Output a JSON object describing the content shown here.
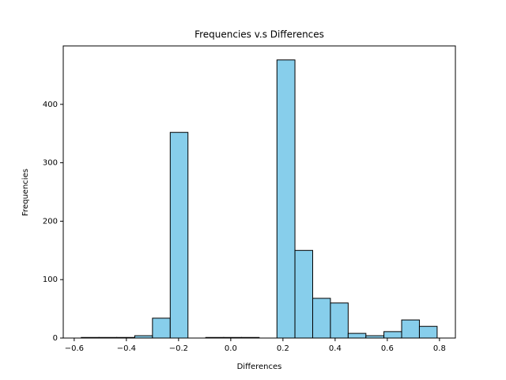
{
  "chart_data": {
    "type": "histogram",
    "title": "Frequencies v.s Differences",
    "x_label": "Differences",
    "y_label": "Frequencies",
    "bins": [
      -0.573,
      -0.505,
      -0.437,
      -0.368,
      -0.3,
      -0.232,
      -0.164,
      -0.096,
      -0.027,
      0.041,
      0.109,
      0.177,
      0.246,
      0.314,
      0.382,
      0.45,
      0.518,
      0.587,
      0.655,
      0.723,
      0.791
    ],
    "counts": [
      1,
      1,
      1,
      4,
      34,
      352,
      0,
      1,
      1,
      1,
      0,
      476,
      150,
      68,
      60,
      8,
      4,
      11,
      31,
      20
    ],
    "color": "#87ceeb",
    "edgecolor": "#000000",
    "xlim": [
      -0.642,
      0.861
    ],
    "ylim": [
      0,
      500
    ],
    "xticks": [
      {
        "value": -0.6,
        "label": "−0.6"
      },
      {
        "value": -0.4,
        "label": "−0.4"
      },
      {
        "value": -0.2,
        "label": "−0.2"
      },
      {
        "value": 0,
        "label": "0.0"
      },
      0.2,
      0.4,
      0.6,
      0.8
    ],
    "yticks": [
      0,
      100,
      200,
      300,
      400
    ]
  }
}
